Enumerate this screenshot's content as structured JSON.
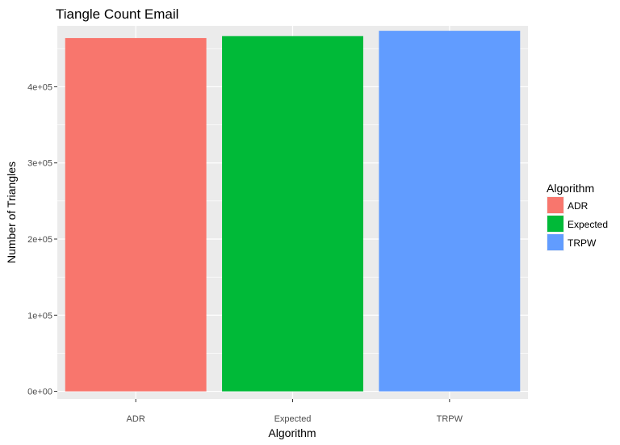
{
  "chart_data": {
    "type": "bar",
    "title": "Tiangle Count Email",
    "xlabel": "Algorithm",
    "ylabel": "Number of Triangles",
    "categories": [
      "ADR",
      "Expected",
      "TRPW"
    ],
    "values": [
      464000,
      466500,
      473500
    ],
    "colors": [
      "#F8766D",
      "#00BA38",
      "#619CFF"
    ],
    "ylim": [
      -10000,
      480000
    ],
    "yticks": [
      0,
      100000,
      200000,
      300000,
      400000
    ],
    "ytick_labels": [
      "0e+00",
      "1e+05",
      "2e+05",
      "3e+05",
      "4e+05"
    ],
    "grid": true,
    "panel_color": "#EBEBEB",
    "legend": {
      "title": "Algorithm",
      "position": "right",
      "entries": [
        "ADR",
        "Expected",
        "TRPW"
      ]
    }
  }
}
